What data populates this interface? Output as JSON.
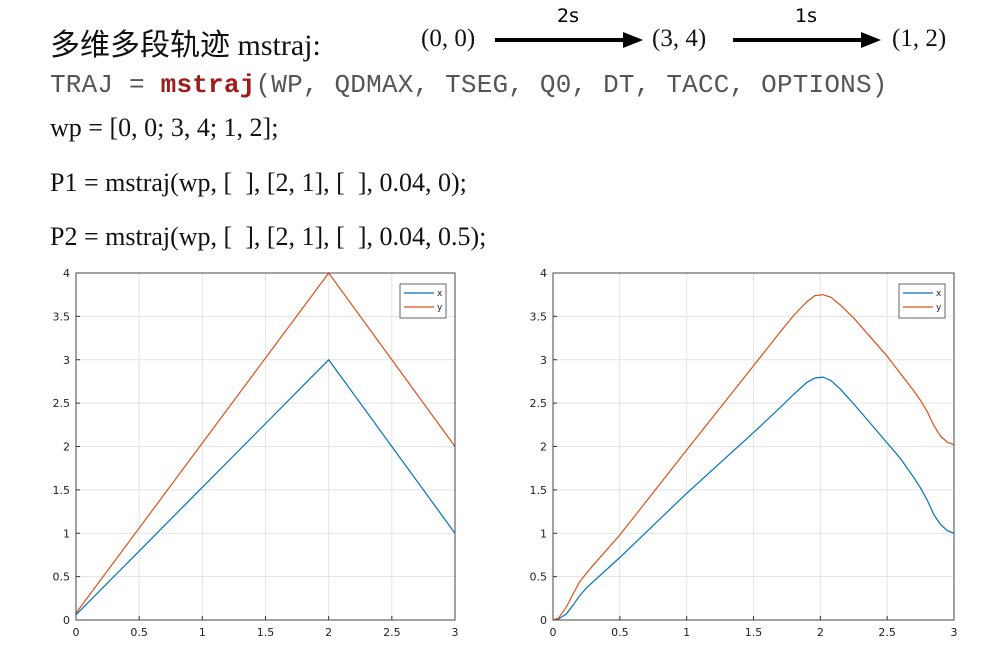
{
  "header": {
    "title": "多维多段轨迹 mstraj:",
    "waypoints": [
      "(0, 0)",
      "(3, 4)",
      "(1, 2)"
    ],
    "durations": [
      "2s",
      "1s"
    ]
  },
  "code": {
    "sig_traj": "TRAJ",
    "sig_eq": " = ",
    "sig_fn": "mstraj",
    "sig_args": "(WP, QDMAX, TSEG, Q0, DT, TACC, OPTIONS)",
    "line_wp": "wp = [0, 0; 3, 4; 1, 2];",
    "line_p1": "P1 = mstraj(wp, [  ], [2, 1], [  ], 0.04, 0);",
    "line_p2": "P2 = mstraj(wp, [  ], [2, 1], [  ], 0.04, 0.5);"
  },
  "colors": {
    "x": "#0072bd",
    "y": "#d95319",
    "arrow": "#000000",
    "fn": "#a01c1c"
  },
  "chart_data": [
    {
      "type": "line",
      "title": "",
      "xlabel": "",
      "ylabel": "",
      "xlim": [
        0,
        3
      ],
      "ylim": [
        0,
        4
      ],
      "xticks": [
        "0",
        "0.5",
        "1",
        "1.5",
        "2",
        "2.5",
        "3"
      ],
      "yticks": [
        "0",
        "0.5",
        "1",
        "1.5",
        "2",
        "2.5",
        "3",
        "3.5",
        "4"
      ],
      "grid": true,
      "legend": "top-right",
      "series": [
        {
          "name": "x",
          "points": [
            [
              0,
              0.06
            ],
            [
              2,
              3
            ],
            [
              3,
              1
            ]
          ]
        },
        {
          "name": "y",
          "points": [
            [
              0,
              0.08
            ],
            [
              2,
              4
            ],
            [
              3,
              2
            ]
          ]
        }
      ]
    },
    {
      "type": "line",
      "title": "",
      "xlabel": "",
      "ylabel": "",
      "xlim": [
        0,
        3
      ],
      "ylim": [
        0,
        4
      ],
      "xticks": [
        "0",
        "0.5",
        "1",
        "1.5",
        "2",
        "2.5",
        "3"
      ],
      "yticks": [
        "0",
        "0.5",
        "1",
        "1.5",
        "2",
        "2.5",
        "3",
        "3.5",
        "4"
      ],
      "grid": true,
      "legend": "top-right",
      "series": [
        {
          "name": "x",
          "points": [
            [
              0,
              0
            ],
            [
              0.04,
              0.01
            ],
            [
              0.1,
              0.07
            ],
            [
              0.15,
              0.17
            ],
            [
              0.2,
              0.28
            ],
            [
              0.25,
              0.37
            ],
            [
              0.3,
              0.44
            ],
            [
              0.5,
              0.72
            ],
            [
              1,
              1.46
            ],
            [
              1.5,
              2.16
            ],
            [
              1.7,
              2.45
            ],
            [
              1.8,
              2.6
            ],
            [
              1.9,
              2.74
            ],
            [
              1.96,
              2.79
            ],
            [
              2.02,
              2.8
            ],
            [
              2.08,
              2.76
            ],
            [
              2.15,
              2.66
            ],
            [
              2.25,
              2.49
            ],
            [
              2.5,
              2.04
            ],
            [
              2.6,
              1.86
            ],
            [
              2.7,
              1.64
            ],
            [
              2.75,
              1.52
            ],
            [
              2.8,
              1.38
            ],
            [
              2.85,
              1.21
            ],
            [
              2.9,
              1.1
            ],
            [
              2.95,
              1.03
            ],
            [
              3,
              1
            ]
          ]
        },
        {
          "name": "y",
          "points": [
            [
              0,
              0
            ],
            [
              0.04,
              0.02
            ],
            [
              0.1,
              0.15
            ],
            [
              0.15,
              0.3
            ],
            [
              0.2,
              0.44
            ],
            [
              0.25,
              0.54
            ],
            [
              0.3,
              0.63
            ],
            [
              0.5,
              0.98
            ],
            [
              1,
              1.96
            ],
            [
              1.5,
              2.93
            ],
            [
              1.7,
              3.32
            ],
            [
              1.8,
              3.51
            ],
            [
              1.9,
              3.67
            ],
            [
              1.96,
              3.74
            ],
            [
              2.02,
              3.75
            ],
            [
              2.08,
              3.72
            ],
            [
              2.15,
              3.63
            ],
            [
              2.25,
              3.48
            ],
            [
              2.5,
              3.04
            ],
            [
              2.6,
              2.84
            ],
            [
              2.7,
              2.64
            ],
            [
              2.75,
              2.53
            ],
            [
              2.8,
              2.4
            ],
            [
              2.85,
              2.24
            ],
            [
              2.9,
              2.12
            ],
            [
              2.95,
              2.05
            ],
            [
              3,
              2.02
            ]
          ]
        }
      ]
    }
  ]
}
